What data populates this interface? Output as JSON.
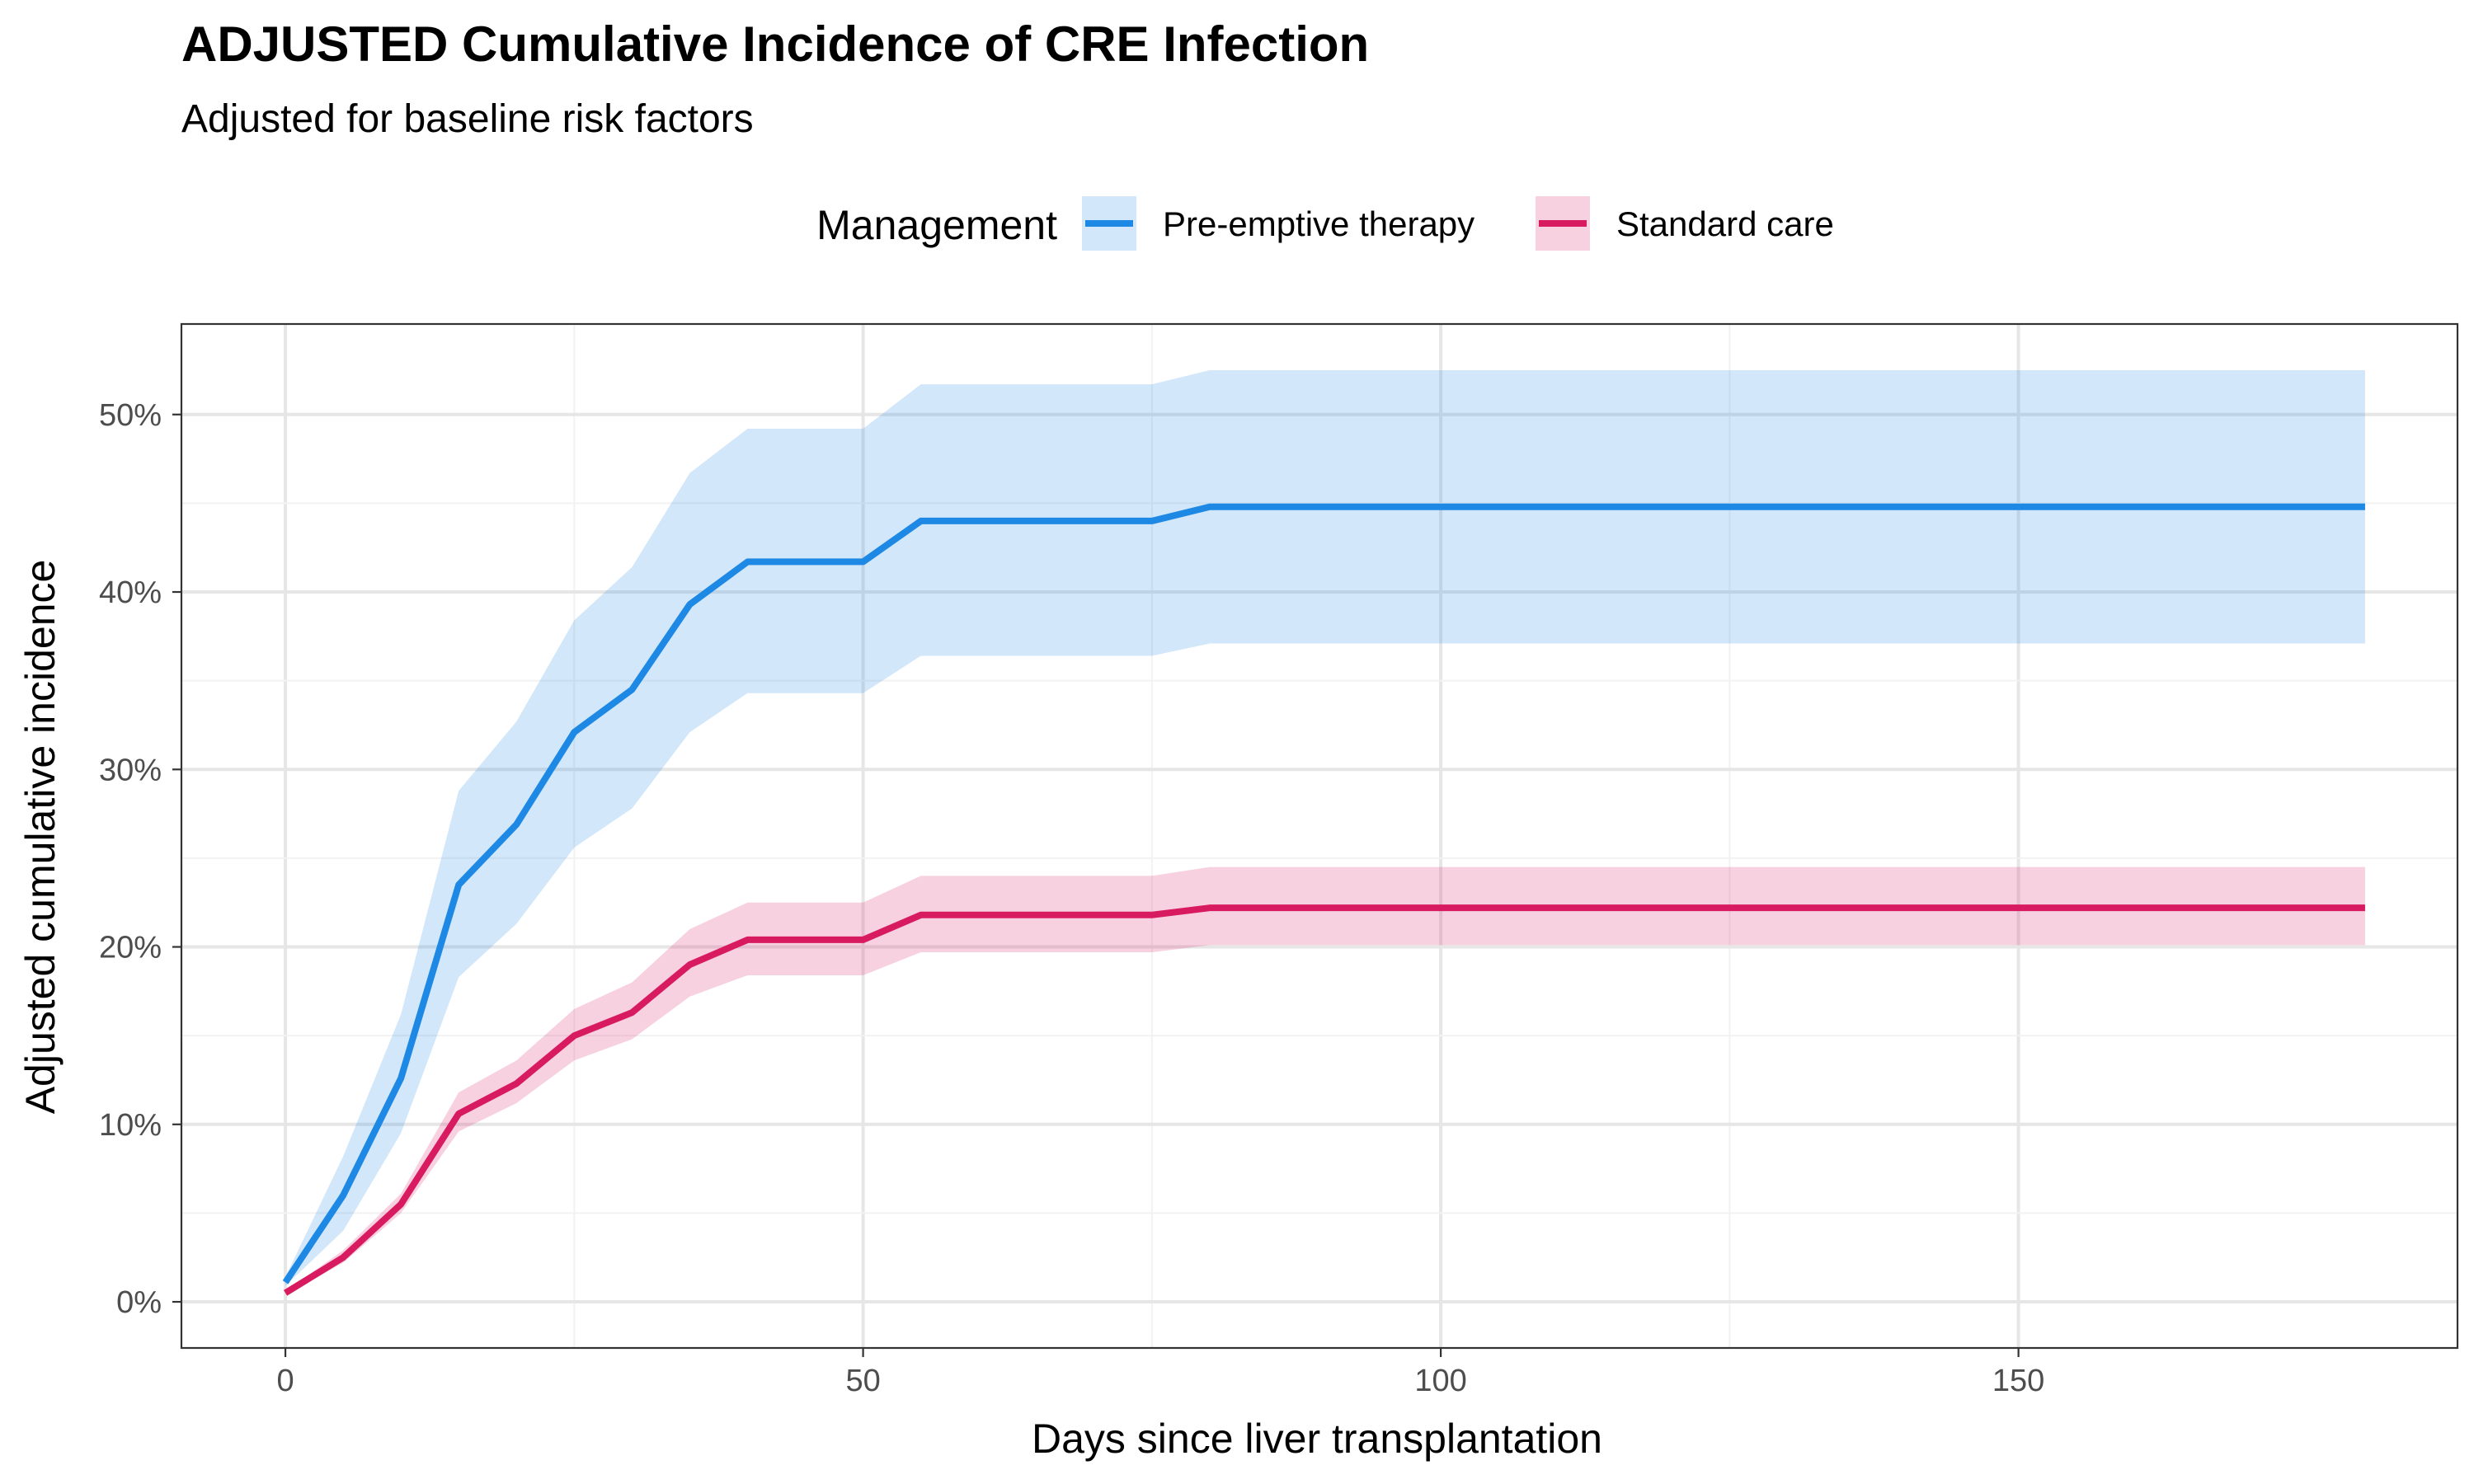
{
  "chart_data": {
    "type": "line",
    "title": "ADJUSTED Cumulative Incidence of CRE Infection",
    "subtitle": "Adjusted for baseline risk factors",
    "xlabel": "Days since liver transplantation",
    "ylabel": "Adjusted cumulative incidence",
    "xlim": [
      -9,
      188
    ],
    "ylim": [
      -0.026,
      0.551
    ],
    "x_ticks": [
      0,
      50,
      100,
      150
    ],
    "x_tick_labels": [
      "0",
      "50",
      "100",
      "150"
    ],
    "y_ticks": [
      0,
      0.1,
      0.2,
      0.3,
      0.4,
      0.5
    ],
    "y_tick_labels": [
      "0%",
      "10%",
      "20%",
      "30%",
      "40%",
      "50%"
    ],
    "grid": true,
    "legend": {
      "title": "Management",
      "position": "top"
    },
    "x": [
      0,
      5,
      10,
      15,
      20,
      25,
      30,
      35,
      40,
      45,
      50,
      55,
      60,
      65,
      70,
      75,
      80,
      180
    ],
    "series": [
      {
        "name": "Pre-emptive therapy",
        "color": "#1e88e5",
        "band_color": "#d2e6f9",
        "values": [
          0.011,
          0.06,
          0.126,
          0.235,
          0.269,
          0.321,
          0.345,
          0.393,
          0.417,
          0.417,
          0.417,
          0.44,
          0.44,
          0.44,
          0.44,
          0.44,
          0.448,
          0.448
        ],
        "lower": [
          0.009,
          0.04,
          0.095,
          0.183,
          0.213,
          0.256,
          0.278,
          0.321,
          0.343,
          0.343,
          0.343,
          0.364,
          0.364,
          0.364,
          0.364,
          0.364,
          0.371,
          0.371
        ],
        "upper": [
          0.014,
          0.082,
          0.162,
          0.288,
          0.327,
          0.384,
          0.414,
          0.467,
          0.492,
          0.492,
          0.492,
          0.517,
          0.517,
          0.517,
          0.517,
          0.517,
          0.525,
          0.525
        ]
      },
      {
        "name": "Standard care",
        "color": "#d81b60",
        "band_color": "#f5d1de",
        "values": [
          0.005,
          0.025,
          0.055,
          0.106,
          0.123,
          0.15,
          0.163,
          0.19,
          0.204,
          0.204,
          0.204,
          0.218,
          0.218,
          0.218,
          0.218,
          0.218,
          0.222,
          0.222
        ],
        "lower": [
          0.004,
          0.022,
          0.05,
          0.096,
          0.112,
          0.136,
          0.148,
          0.172,
          0.184,
          0.184,
          0.184,
          0.197,
          0.197,
          0.197,
          0.197,
          0.197,
          0.201,
          0.201
        ],
        "upper": [
          0.006,
          0.029,
          0.061,
          0.118,
          0.136,
          0.165,
          0.18,
          0.21,
          0.225,
          0.225,
          0.225,
          0.24,
          0.24,
          0.24,
          0.24,
          0.24,
          0.245,
          0.245
        ]
      }
    ]
  }
}
